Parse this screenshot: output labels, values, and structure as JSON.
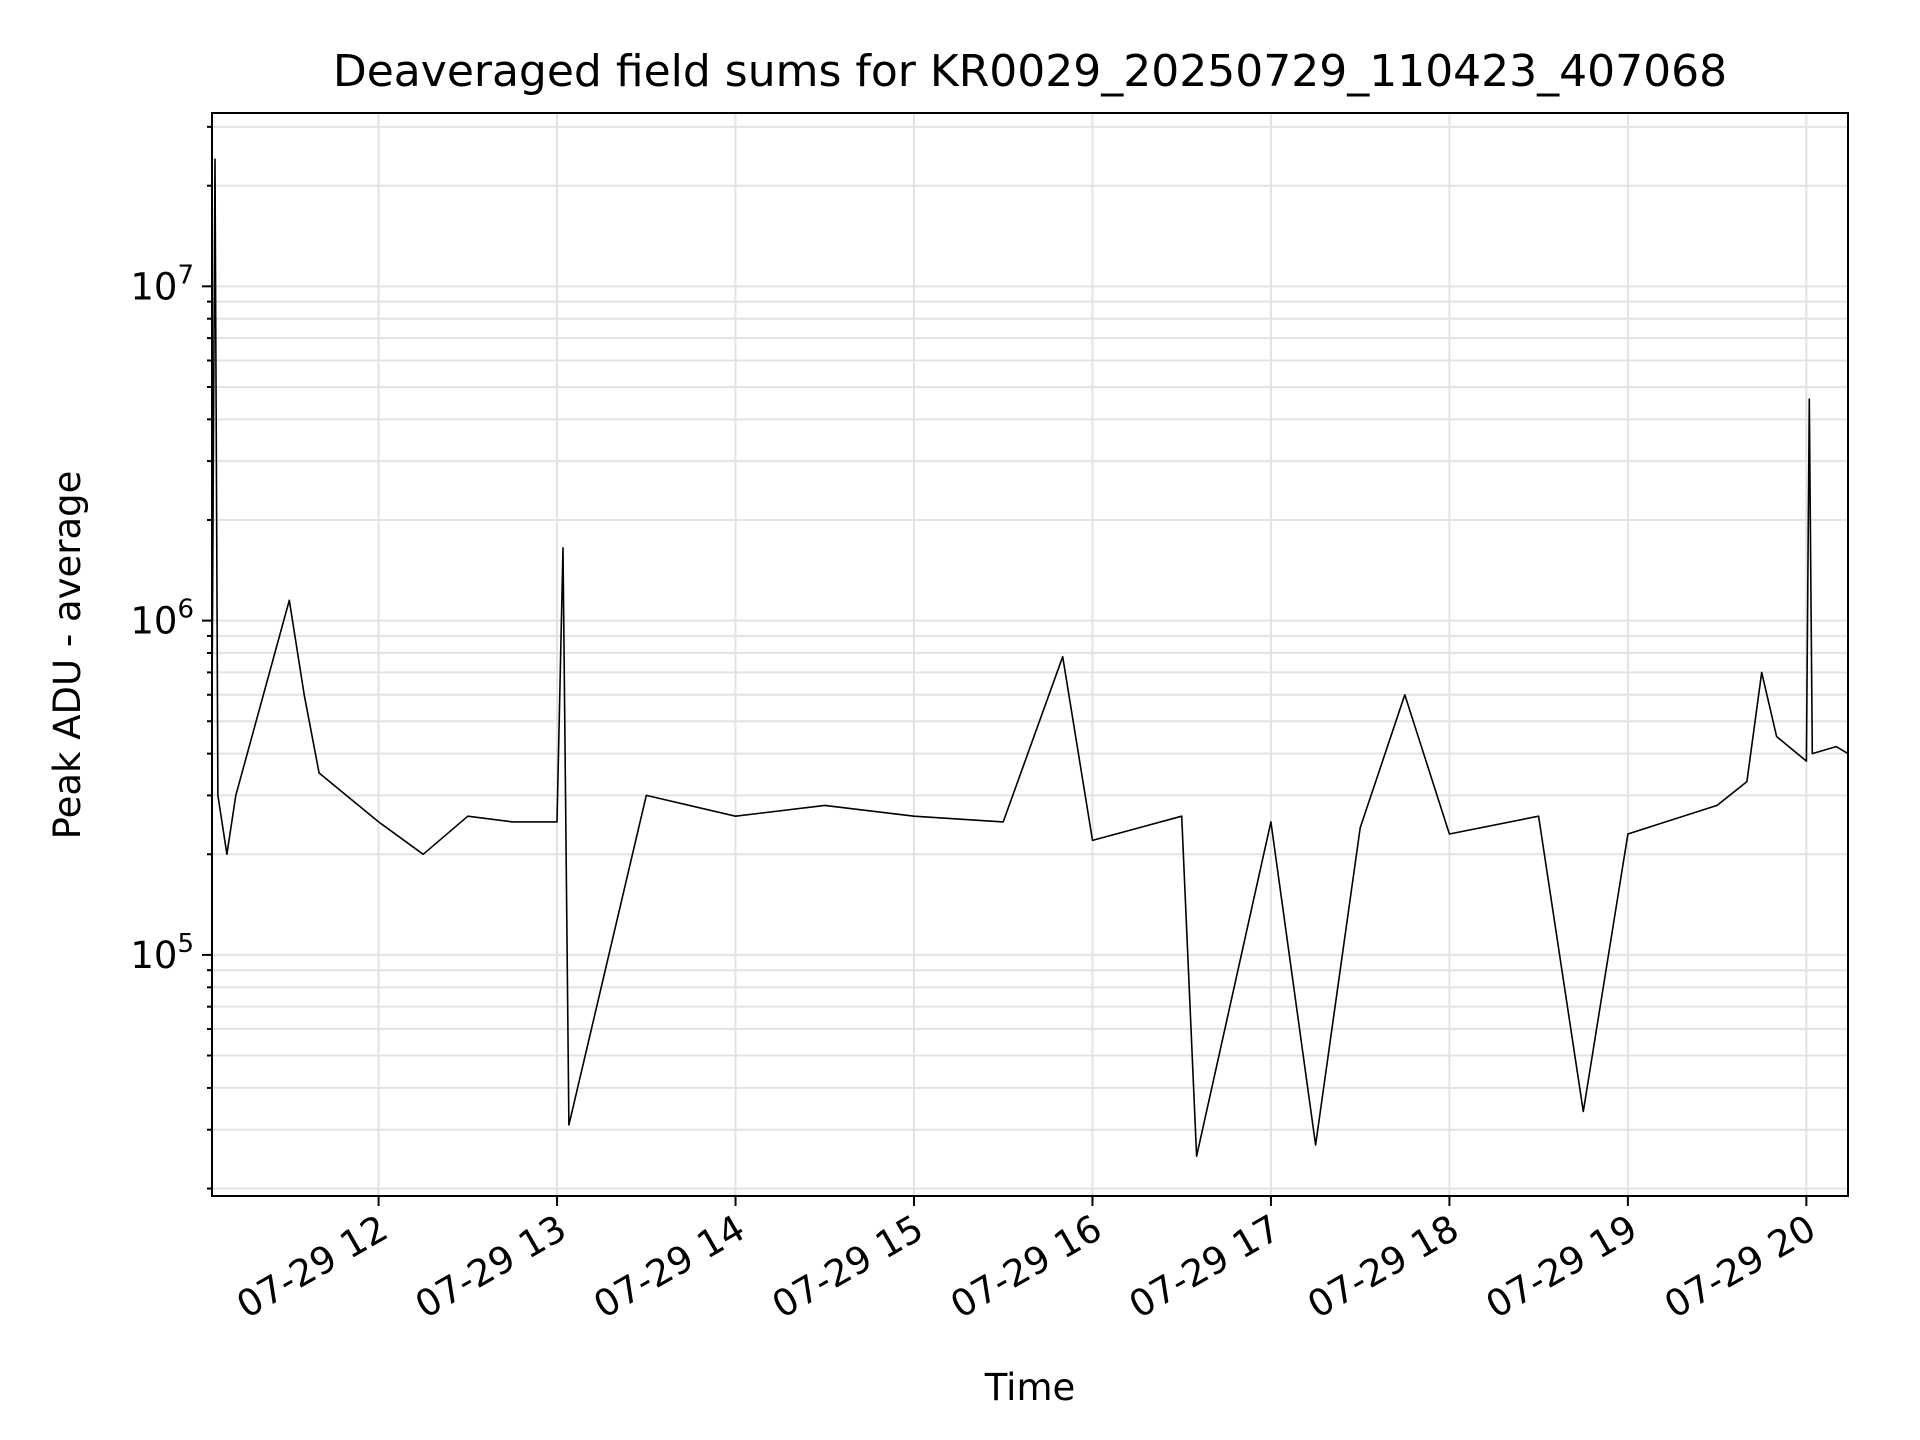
{
  "chart_data": {
    "type": "line",
    "title": "Deaveraged field sums for KR0029_20250729_110423_407068",
    "xlabel": "Time",
    "ylabel": "Peak ADU - average",
    "yscale": "log",
    "ylim": [
      19000,
      33000000
    ],
    "xlim": [
      "07-29 11:04",
      "07-29 20:14"
    ],
    "grid": true,
    "line_color": "#000000",
    "x_ticks": [
      {
        "label": "07-29 12",
        "value": "07-29 12:00"
      },
      {
        "label": "07-29 13",
        "value": "07-29 13:00"
      },
      {
        "label": "07-29 14",
        "value": "07-29 14:00"
      },
      {
        "label": "07-29 15",
        "value": "07-29 15:00"
      },
      {
        "label": "07-29 16",
        "value": "07-29 16:00"
      },
      {
        "label": "07-29 17",
        "value": "07-29 17:00"
      },
      {
        "label": "07-29 18",
        "value": "07-29 18:00"
      },
      {
        "label": "07-29 19",
        "value": "07-29 19:00"
      },
      {
        "label": "07-29 20",
        "value": "07-29 20:00"
      }
    ],
    "y_ticks": [
      {
        "base": "10",
        "exp": "5",
        "value": 100000
      },
      {
        "base": "10",
        "exp": "6",
        "value": 1000000
      },
      {
        "base": "10",
        "exp": "7",
        "value": 10000000
      }
    ],
    "series": [
      {
        "name": "",
        "x": [
          "07-29 11:04",
          "07-29 11:05",
          "07-29 11:06",
          "07-29 11:09",
          "07-29 11:12",
          "07-29 11:30",
          "07-29 11:35",
          "07-29 11:40",
          "07-29 12:00",
          "07-29 12:15",
          "07-29 12:30",
          "07-29 12:45",
          "07-29 13:00",
          "07-29 13:02",
          "07-29 13:04",
          "07-29 13:30",
          "07-29 14:00",
          "07-29 14:30",
          "07-29 15:00",
          "07-29 15:30",
          "07-29 15:50",
          "07-29 16:00",
          "07-29 16:30",
          "07-29 16:35",
          "07-29 17:00",
          "07-29 17:15",
          "07-29 17:30",
          "07-29 17:45",
          "07-29 18:00",
          "07-29 18:30",
          "07-29 18:45",
          "07-29 19:00",
          "07-29 19:30",
          "07-29 19:40",
          "07-29 19:45",
          "07-29 19:50",
          "07-29 20:00",
          "07-29 20:01",
          "07-29 20:02",
          "07-29 20:10",
          "07-29 20:14"
        ],
        "y": [
          550000,
          24000000,
          300000,
          200000,
          300000,
          1150000,
          600000,
          350000,
          250000,
          200000,
          260000,
          250000,
          250000,
          1650000,
          31000,
          300000,
          260000,
          280000,
          260000,
          250000,
          780000,
          220000,
          260000,
          25000,
          250000,
          27000,
          240000,
          600000,
          230000,
          260000,
          34000,
          230000,
          280000,
          330000,
          700000,
          450000,
          380000,
          4600000,
          400000,
          420000,
          400000
        ]
      }
    ]
  }
}
